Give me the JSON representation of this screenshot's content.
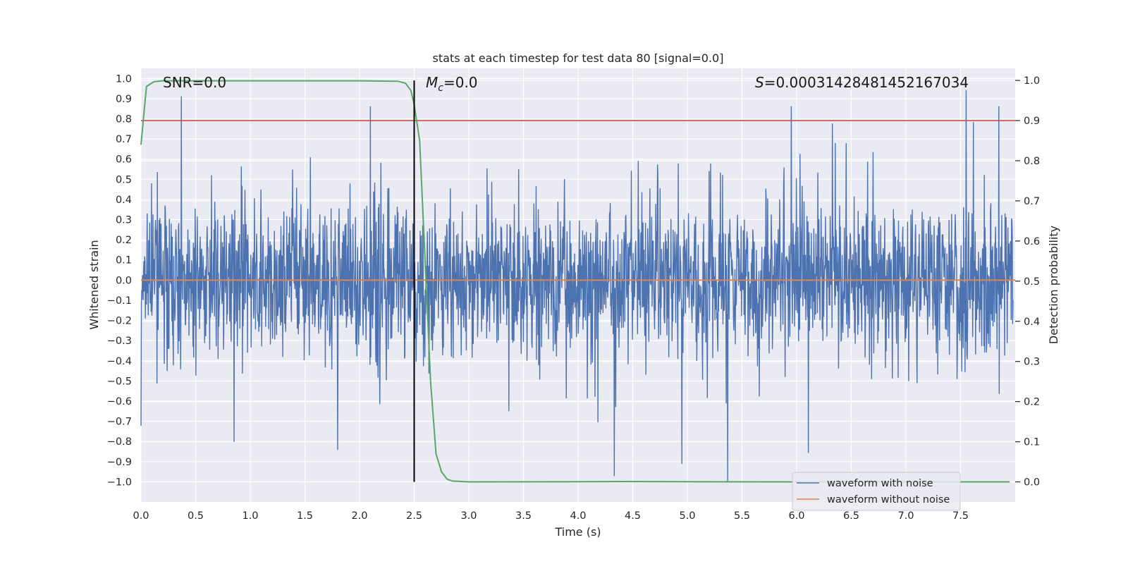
{
  "chart_data": {
    "type": "line",
    "title": "stats at each timestep for test data 80 [signal=0.0]",
    "xlabel": "Time (s)",
    "ylabel": "Whitened strain",
    "y2label": "Detection probability",
    "xlim": [
      0.0,
      8.0
    ],
    "ylim": [
      -1.1,
      1.05
    ],
    "y2lim": [
      -0.05,
      1.03
    ],
    "grid": true,
    "x_ticks": [
      0.0,
      0.5,
      1.0,
      1.5,
      2.0,
      2.5,
      3.0,
      3.5,
      4.0,
      4.5,
      5.0,
      5.5,
      6.0,
      6.5,
      7.0,
      7.5
    ],
    "x_tick_labels": [
      "0.0",
      "0.5",
      "1.0",
      "1.5",
      "2.0",
      "2.5",
      "3.0",
      "3.5",
      "4.0",
      "4.5",
      "5.0",
      "5.5",
      "6.0",
      "6.5",
      "7.0",
      "7.5"
    ],
    "y_ticks": [
      1.0,
      0.9,
      0.8,
      0.7,
      0.6,
      0.5,
      0.4,
      0.3,
      0.2,
      0.1,
      0.0,
      -0.1,
      -0.2,
      -0.3,
      -0.4,
      -0.5,
      -0.6,
      -0.7,
      -0.8,
      -0.9,
      -1.0
    ],
    "y_tick_labels": [
      "1.0",
      "0.9",
      "0.8",
      "0.7",
      "0.6",
      "0.5",
      "0.4",
      "0.3",
      "0.2",
      "0.1",
      "0.0",
      "−0.1",
      "−0.2",
      "−0.3",
      "−0.4",
      "−0.5",
      "−0.6",
      "−0.7",
      "−0.8",
      "−0.9",
      "−1.0"
    ],
    "y2_ticks": [
      1.0,
      0.9,
      0.8,
      0.7,
      0.6,
      0.5,
      0.4,
      0.3,
      0.2,
      0.1,
      0.0
    ],
    "y2_tick_labels": [
      "1.0",
      "0.9",
      "0.8",
      "0.7",
      "0.6",
      "0.5",
      "0.4",
      "0.3",
      "0.2",
      "0.1",
      "0.0"
    ],
    "series": [
      {
        "name": "waveform with noise",
        "color": "#4c72b0",
        "axis": "left",
        "description": "noise-like whitened strain, dense band roughly ±0.35 with spikes",
        "max_value": 0.94,
        "min_value": -1.0,
        "notable_peaks": [
          [
            0.37,
            0.91
          ],
          [
            2.1,
            0.86
          ],
          [
            7.55,
            0.94
          ],
          [
            7.85,
            0.86
          ],
          [
            5.95,
            0.86
          ]
        ],
        "notable_troughs": [
          [
            5.37,
            -1.0
          ],
          [
            4.33,
            -0.97
          ],
          [
            4.95,
            -0.91
          ],
          [
            1.8,
            -0.84
          ],
          [
            0.85,
            -0.8
          ]
        ]
      },
      {
        "name": "waveform without noise",
        "color": "#dd8452",
        "axis": "left",
        "x": [
          0.0,
          8.0
        ],
        "values": [
          0.0,
          0.0
        ]
      },
      {
        "name": "detection probability",
        "color": "#55a868",
        "axis": "right",
        "x": [
          0.0,
          0.05,
          0.12,
          0.2,
          1.0,
          2.0,
          2.35,
          2.42,
          2.47,
          2.5,
          2.55,
          2.6,
          2.65,
          2.7,
          2.75,
          2.8,
          2.85,
          3.0,
          4.0,
          4.4,
          5.0,
          6.0,
          7.0,
          7.95
        ],
        "values": [
          0.84,
          0.985,
          0.997,
          0.999,
          0.999,
          0.999,
          0.998,
          0.993,
          0.975,
          0.94,
          0.85,
          0.55,
          0.25,
          0.07,
          0.025,
          0.007,
          0.002,
          0.0,
          0.0005,
          0.001,
          0.0005,
          0.0,
          0.0,
          0.0
        ]
      }
    ],
    "threshold": {
      "value": 0.9,
      "axis": "right",
      "color": "#c44e52"
    },
    "vertical_line": {
      "x": 2.5,
      "color": "#000000"
    },
    "annotations": {
      "snr": "SNR=0.0",
      "mc_symbol": "M",
      "mc_subscript": "c",
      "mc_value": "=0.0",
      "s_symbol": "S",
      "s_value": "=0.00031428481452167034"
    },
    "legend": {
      "position": "lower-right",
      "entries": [
        {
          "label": "waveform with noise",
          "color": "#4c72b0"
        },
        {
          "label": "waveform without noise",
          "color": "#dd8452"
        }
      ]
    }
  }
}
